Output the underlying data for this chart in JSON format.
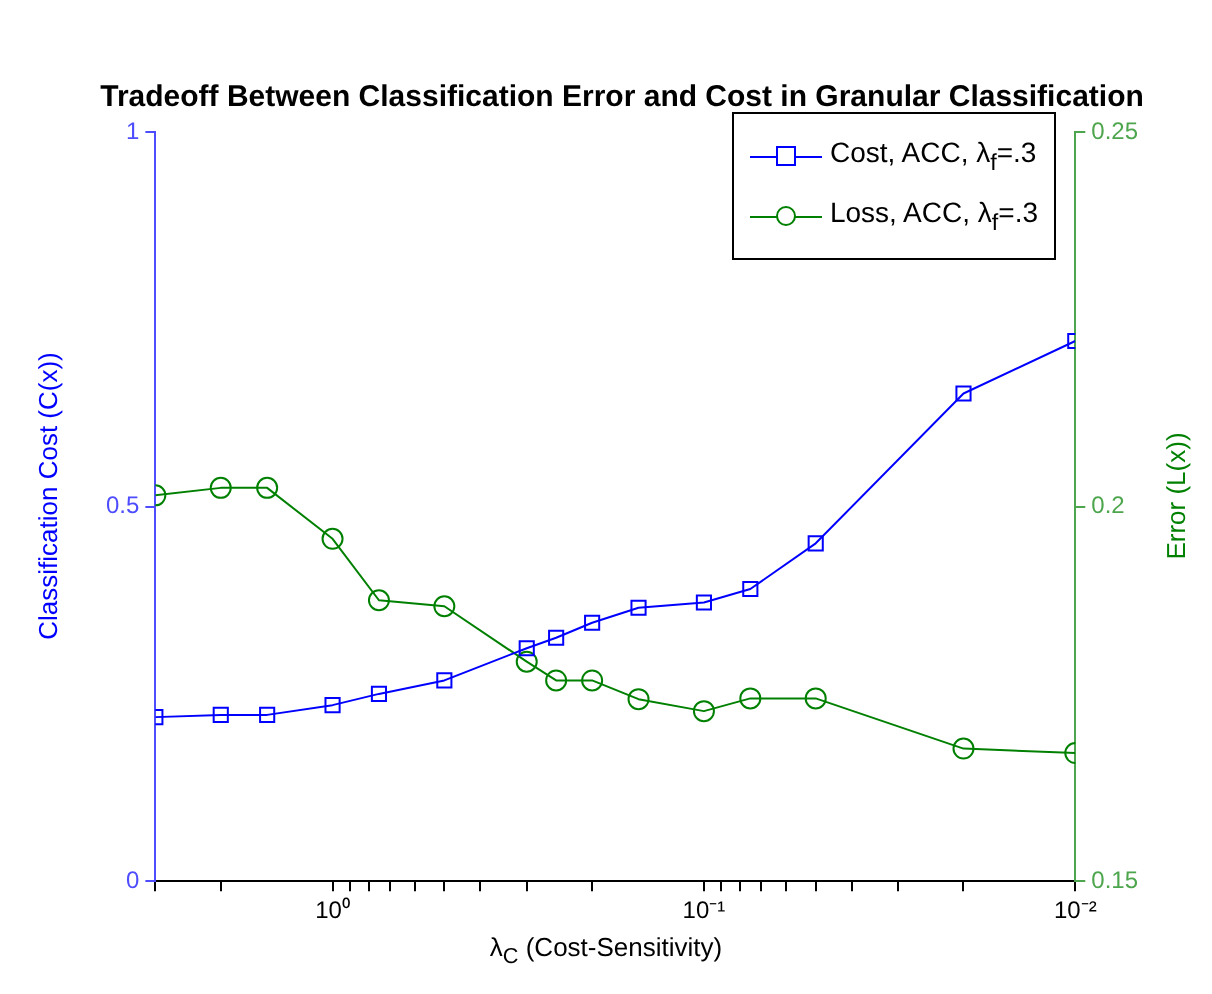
{
  "chart_data": {
    "type": "line",
    "title": "Tradeoff Between Classification Error and Cost in Granular Classification",
    "xlabel": "λ$_{C}$ (Cost-Sensitivity)",
    "ylabel": "Classification Cost (C(x))",
    "y2label": "Error (L(x))",
    "x": [
      3,
      2,
      1.5,
      1,
      0.75,
      0.5,
      0.3,
      0.25,
      0.2,
      0.15,
      0.1,
      0.075,
      0.05,
      0.02,
      0.01
    ],
    "series": [
      {
        "name": "Cost, ACC, λ$_{f}$=.3",
        "color": "#0000ff",
        "marker": "square",
        "values": [
          0.219,
          0.222,
          0.222,
          0.235,
          0.25,
          0.268,
          0.311,
          0.325,
          0.345,
          0.365,
          0.372,
          0.39,
          0.451,
          0.651,
          0.721
        ]
      },
      {
        "name": "Loss, ACC, λ$_{f}$=.3",
        "color": "#008000",
        "marker": "circle",
        "axis": "y2",
        "values": [
          0.2015,
          0.2025,
          0.2025,
          0.1957,
          0.1875,
          0.1867,
          0.1793,
          0.1768,
          0.1768,
          0.1743,
          0.1727,
          0.1744,
          0.1744,
          0.1677,
          0.1671
        ]
      }
    ],
    "log": "x",
    "xlim": [
      3,
      0.01
    ],
    "xticks": [
      {
        "value": 3,
        "label": null
      },
      {
        "value": 2,
        "label": null
      },
      {
        "value": 1,
        "label": "10⁰"
      },
      {
        "value": 0.9,
        "label": null
      },
      {
        "value": 0.8,
        "label": null
      },
      {
        "value": 0.7,
        "label": null
      },
      {
        "value": 0.6,
        "label": null
      },
      {
        "value": 0.5,
        "label": null
      },
      {
        "value": 0.4,
        "label": null
      },
      {
        "value": 0.3,
        "label": null
      },
      {
        "value": 0.2,
        "label": null
      },
      {
        "value": 0.1,
        "label": "10⁻¹"
      },
      {
        "value": 0.09,
        "label": null
      },
      {
        "value": 0.08,
        "label": null
      },
      {
        "value": 0.07,
        "label": null
      },
      {
        "value": 0.06,
        "label": null
      },
      {
        "value": 0.05,
        "label": null
      },
      {
        "value": 0.04,
        "label": null
      },
      {
        "value": 0.03,
        "label": null
      },
      {
        "value": 0.02,
        "label": null
      },
      {
        "value": 0.01,
        "label": "10⁻²"
      }
    ],
    "ylim": [
      0,
      1
    ],
    "yticks": [
      0,
      0.5,
      1
    ],
    "y2lim": [
      0.15,
      0.25
    ],
    "y2ticks": [
      0.15,
      0.2,
      0.25
    ],
    "grid": false,
    "legend": "top right",
    "line_style": "solid"
  }
}
